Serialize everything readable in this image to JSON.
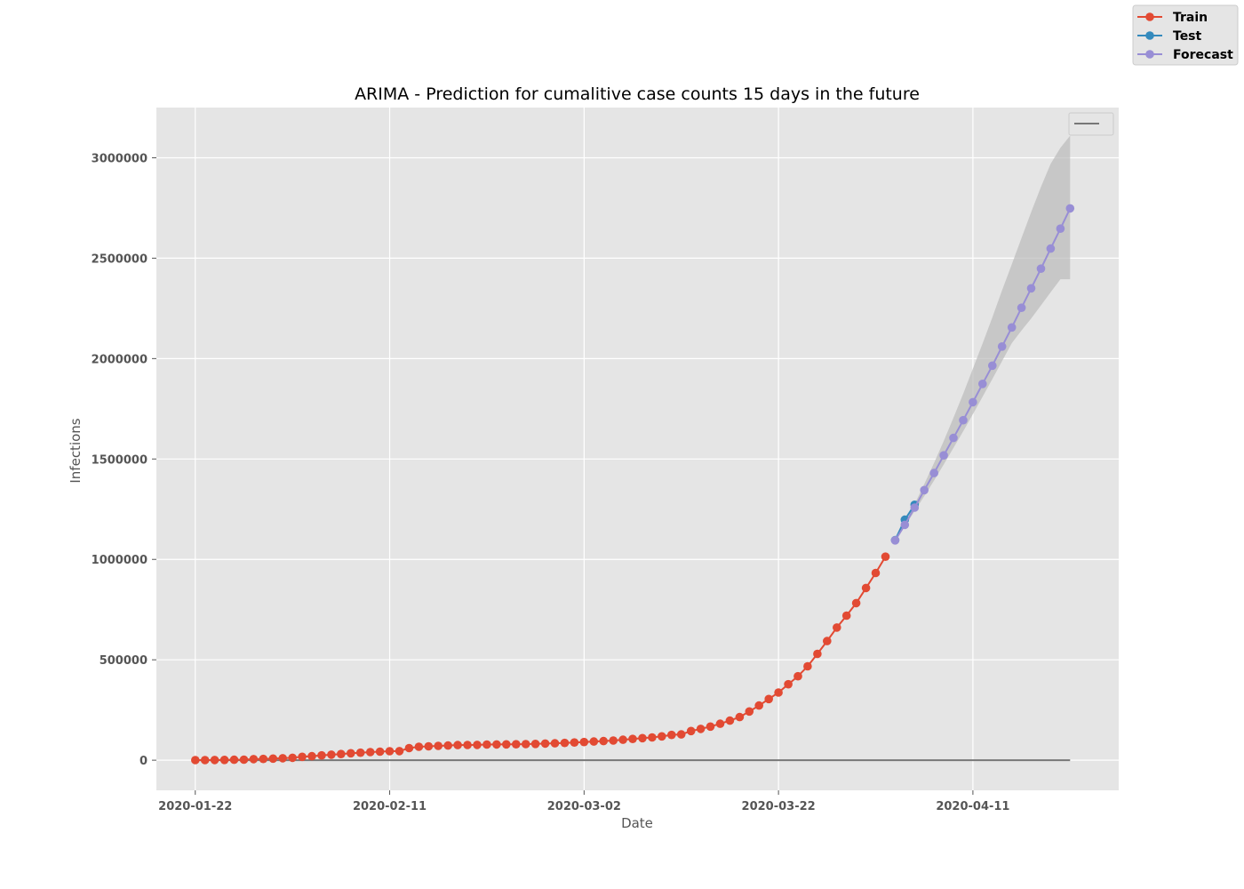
{
  "chart_data": {
    "type": "line",
    "title": "ARIMA - Prediction for cumalitive case counts 15 days in the future",
    "xlabel": "Date",
    "ylabel": "Infections",
    "x_start": "2020-01-22",
    "xlim": [
      "2020-01-18",
      "2020-04-26"
    ],
    "ylim": [
      -150000,
      3250000
    ],
    "x_ticks": [
      "2020-01-22",
      "2020-02-11",
      "2020-03-02",
      "2020-03-22",
      "2020-04-11"
    ],
    "y_ticks": [
      0,
      500000,
      1000000,
      1500000,
      2000000,
      2500000,
      3000000
    ],
    "y_tick_labels": [
      "0",
      "500000",
      "1000000",
      "1500000",
      "2000000",
      "2500000",
      "3000000"
    ],
    "grid": true,
    "legend_position": "top-right outside",
    "series": [
      {
        "name": "Train",
        "color": "#E24A33",
        "marker": "circle",
        "start_date": "2020-01-22",
        "values": [
          555,
          654,
          941,
          1434,
          2118,
          2927,
          5578,
          6166,
          8234,
          9927,
          12038,
          16787,
          19887,
          23898,
          27643,
          30802,
          34395,
          37129,
          40160,
          42768,
          44810,
          45228,
          60381,
          66908,
          69052,
          71235,
          73270,
          75152,
          75653,
          76206,
          78032,
          78503,
          78832,
          79290,
          80126,
          81193,
          82814,
          84112,
          86013,
          88371,
          90309,
          92844,
          95124,
          97886,
          101800,
          105836,
          109835,
          113582,
          118582,
          125865,
          128343,
          145193,
          156099,
          167447,
          181546,
          197102,
          214821,
          242570,
          272208,
          304507,
          336953,
          378235,
          418045,
          467653,
          529591,
          593291,
          660706,
          720117,
          782365,
          857487,
          932605,
          1013466
        ]
      },
      {
        "name": "Test",
        "color": "#348ABD",
        "marker": "circle",
        "start_date": "2020-04-03",
        "values": [
          1095917,
          1197405,
          1272115
        ]
      },
      {
        "name": "Forecast",
        "color": "#988ED5",
        "marker": "circle",
        "start_date": "2020-04-03",
        "values": [
          1095000,
          1172000,
          1258000,
          1345000,
          1430000,
          1518000,
          1605000,
          1693000,
          1783000,
          1874000,
          1965000,
          2060000,
          2155000,
          2253000,
          2350000,
          2448000,
          2548000,
          2647000,
          2748000
        ]
      },
      {
        "name": "",
        "color": "#777777",
        "marker": "none",
        "start_date": "2020-01-22",
        "end_date": "2020-04-21",
        "constant_value": 0
      }
    ],
    "confidence_band": {
      "color": "#bbbbbb",
      "start_date": "2020-04-03",
      "lower": [
        1095000,
        1165000,
        1240000,
        1315000,
        1393000,
        1473000,
        1555000,
        1638000,
        1723000,
        1810000,
        1898000,
        1987000,
        2077000,
        2140000,
        2200000,
        2265000,
        2330000,
        2395000,
        2395000
      ],
      "upper": [
        1095000,
        1180000,
        1275000,
        1375000,
        1480000,
        1590000,
        1705000,
        1825000,
        1950000,
        2075000,
        2205000,
        2340000,
        2470000,
        2600000,
        2730000,
        2855000,
        2970000,
        3050000,
        3110000
      ]
    }
  }
}
